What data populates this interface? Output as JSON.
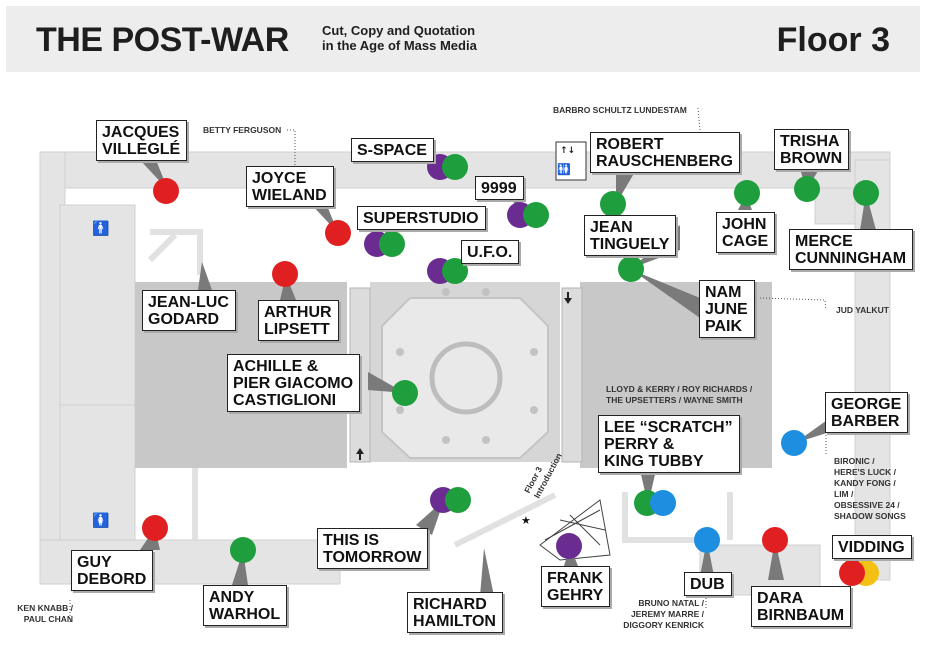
{
  "header": {
    "title": "THE POST-WAR",
    "subtitle": "Cut, Copy and Quotation\nin the Age of Mass Media",
    "floor": "Floor 3"
  },
  "colors": {
    "red": "#e02020",
    "green": "#1e9e3c",
    "purple": "#6a2c91",
    "blue": "#1e8fe0",
    "yellow": "#f2c114",
    "wall": "#e4e4e4",
    "room": "#c9c9c9",
    "pointer": "#7a7a7a"
  },
  "labels": {
    "villegle": "JACQUES\nVILLEGLÉ",
    "wieland": "JOYCE\nWIELAND",
    "sspace": "S-SPACE",
    "n9999": "9999",
    "superstudio": "SUPERSTUDIO",
    "ufo": "U.F.O.",
    "rauschenberg": "ROBERT\nRAUSCHENBERG",
    "trisha": "TRISHA\nBROWN",
    "tinguely": "JEAN\nTINGUELY",
    "cage": "JOHN\nCAGE",
    "merce": "MERCE\nCUNNINGHAM",
    "godard": "JEAN-LUC\nGODARD",
    "lipsett": "ARTHUR\nLIPSETT",
    "paik": "NAM\nJUNE\nPAIK",
    "castiglioni": "ACHILLE &\nPIER GIACOMO\nCASTIGLIONI",
    "barber": "GEORGE\nBARBER",
    "perry": "LEE “SCRATCH”\nPERRY &\nKING TUBBY",
    "tomorrow": "THIS IS\nTOMORROW",
    "debord": "GUY\nDEBORD",
    "warhol": "ANDY\nWARHOL",
    "hamilton": "RICHARD\nHAMILTON",
    "gehry": "FRANK\nGEHRY",
    "dub": "DUB",
    "birnbaum": "DARA\nBIRNBAUM",
    "vidding": "VIDDING"
  },
  "notes": {
    "ferguson": "BETTY FERGUSON",
    "lundestam": "BARBRO SCHULTZ LUNDESTAM",
    "yalkut": "JUD YALKUT",
    "lloyd": "LLOYD & KERRY / ROY RICHARDS /\nTHE UPSETTERS / WAYNE SMITH",
    "bironic": "BIRONIC /\nHERE'S LUCK /\nKANDY FONG /\nLIM /\nOBSESSIVE 24 /\nSHADOW SONGS",
    "knabb": "KEN KNABB /\nPAUL CHAN",
    "natal": "BRUNO NATAL /\nJEREMY MARRE /\nDIGGORY KENRICK",
    "intro": "Floor 3\nIntroduction"
  }
}
